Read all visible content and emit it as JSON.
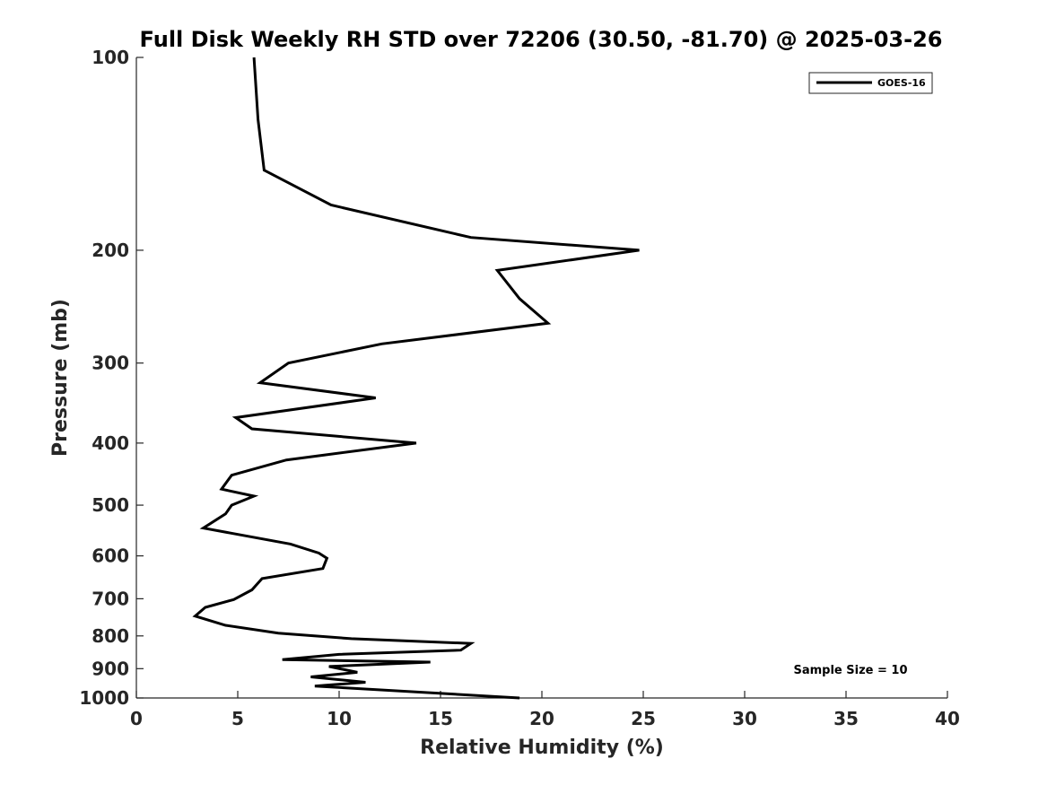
{
  "chart_data": {
    "type": "line",
    "title": "Full Disk Weekly RH STD over 72206 (30.50, -81.70) @ 2025-03-26",
    "xlabel": "Relative Humidity (%)",
    "ylabel": "Pressure (mb)",
    "xlim": [
      0,
      40
    ],
    "ylim": [
      100,
      1000
    ],
    "yscale": "log",
    "y_inverted": true,
    "grid": false,
    "legend_position": "top-right",
    "x_ticks": [
      0,
      5,
      10,
      15,
      20,
      25,
      30,
      35,
      40
    ],
    "y_ticks": [
      100,
      200,
      300,
      400,
      500,
      600,
      700,
      800,
      900,
      1000
    ],
    "series": [
      {
        "name": "GOES-16",
        "color": "#000000",
        "x": [
          5.8,
          6.0,
          6.3,
          9.6,
          16.5,
          24.8,
          17.8,
          18.9,
          20.3,
          12.1,
          7.5,
          6.1,
          11.8,
          4.9,
          5.7,
          13.8,
          7.4,
          4.7,
          4.2,
          5.8,
          4.7,
          4.4,
          3.3,
          7.6,
          9.0,
          9.4,
          9.2,
          6.2,
          5.7,
          4.8,
          3.4,
          2.9,
          4.4,
          7.0,
          10.6,
          16.5,
          16.0,
          10.0,
          7.2,
          14.5,
          9.5,
          10.9,
          8.6,
          11.3,
          8.8,
          18.9
        ],
        "y": [
          100,
          125,
          150,
          170,
          191,
          200,
          215,
          238,
          260,
          280,
          300,
          322,
          340,
          365,
          380,
          400,
          425,
          449,
          472,
          484,
          500,
          516,
          543,
          575,
          594,
          605,
          628,
          651,
          678,
          702,
          722,
          745,
          770,
          792,
          808,
          822,
          842,
          855,
          871,
          879,
          893,
          912,
          927,
          945,
          958,
          1000
        ]
      }
    ],
    "annotations": [
      {
        "text": "Sample Size = 10",
        "x": 34.5,
        "y": 900
      }
    ]
  }
}
